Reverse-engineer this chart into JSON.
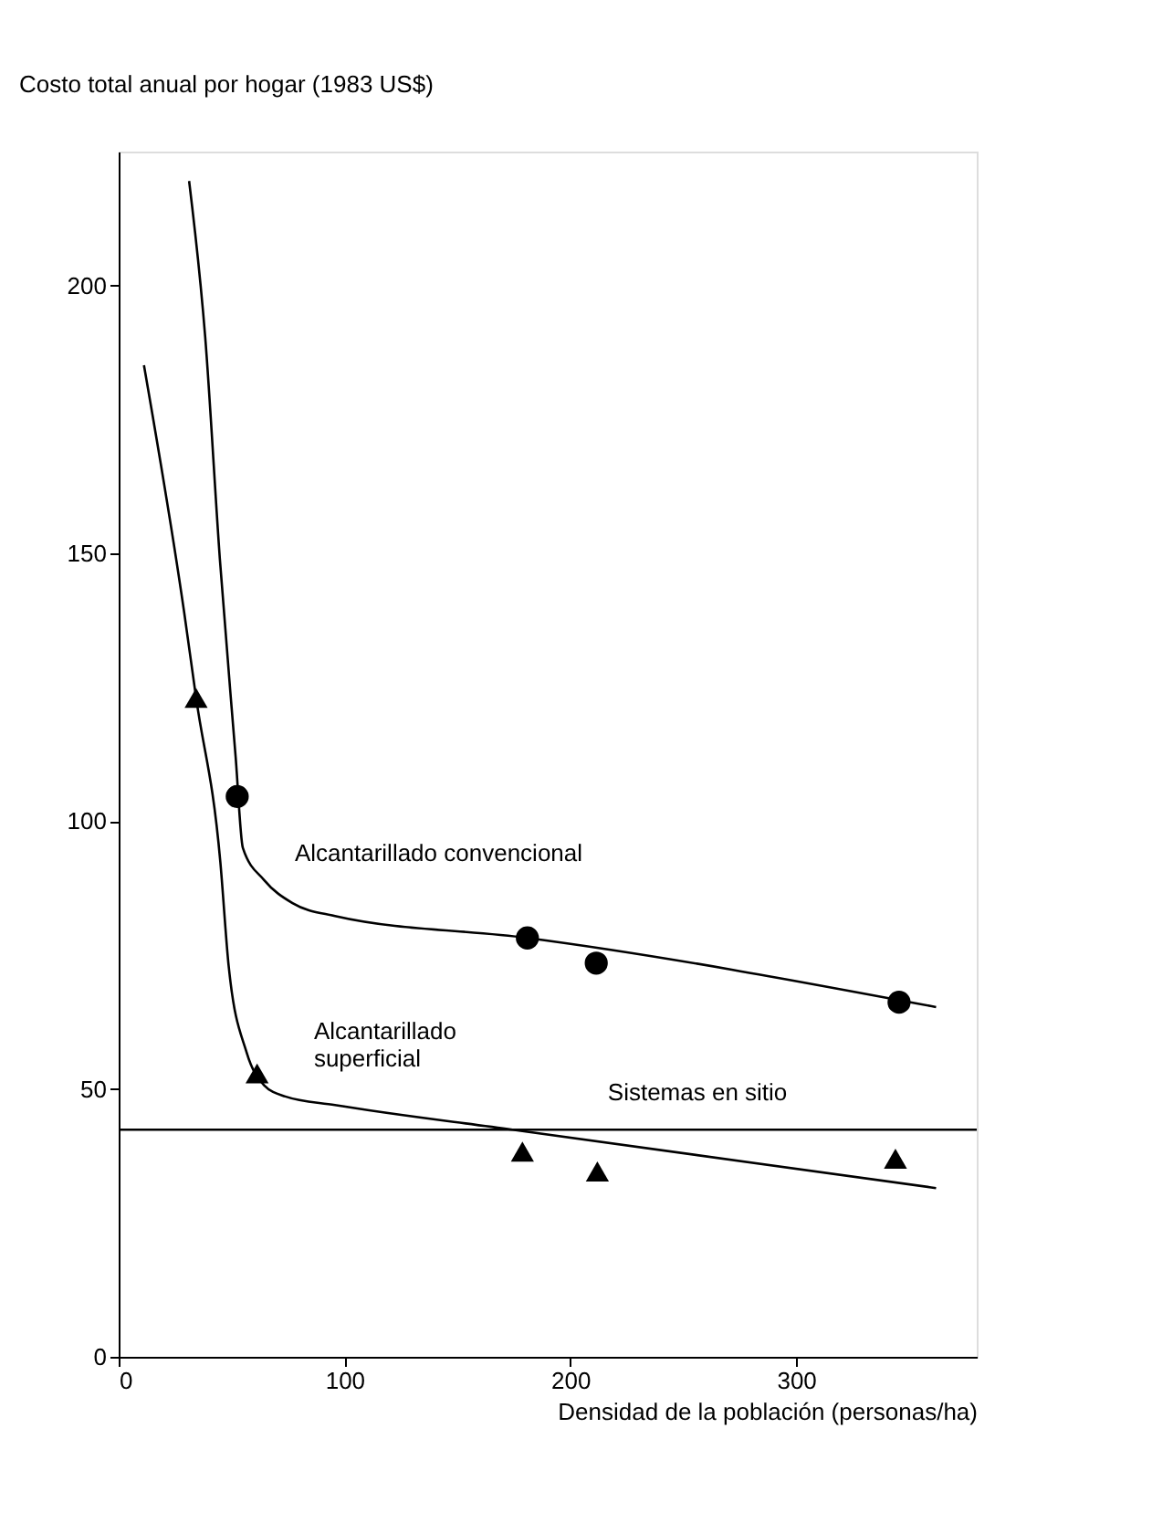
{
  "chart_data": {
    "type": "line",
    "ylabel": "Costo total anual por hogar (1983 US$)",
    "xlabel": "Densidad de la población (personas/ha)",
    "xlim": [
      0,
      380
    ],
    "ylim": [
      0,
      225
    ],
    "xticks": [
      0,
      100,
      200,
      300
    ],
    "yticks": [
      0,
      50,
      100,
      150,
      200
    ],
    "series": [
      {
        "type": "line",
        "color": "#000000",
        "marker": "none",
        "x": [
          31.2,
          38.3,
          44.8,
          51.8,
          55,
          64.4,
          77,
          95.8,
          181,
          362
        ],
        "values": [
          219.5,
          190.5,
          149,
          112,
          95,
          89,
          84.7,
          82.3,
          78.2,
          65.3
        ]
      },
      {
        "type": "line",
        "color": "#000000",
        "marker": "none",
        "x": [
          11.2,
          29,
          34.3,
          45,
          48.7,
          56.6,
          64.4,
          73.8,
          95.8,
          174.4,
          362
        ],
        "values": [
          185.1,
          139,
          123,
          92.5,
          73,
          56.9,
          50.7,
          48.6,
          47,
          42.4,
          31.5
        ]
      },
      {
        "type": "scatter",
        "color": "#000000",
        "marker": "circle",
        "x": [
          52.5,
          181,
          211.5,
          345.6
        ],
        "values": [
          104.6,
          78.2,
          73.5,
          66.2
        ]
      },
      {
        "type": "scatter",
        "color": "#000000",
        "marker": "triangle",
        "x": [
          34.3,
          61.3,
          178.8,
          212,
          344
        ],
        "values": [
          123,
          52.9,
          38.3,
          34.6,
          37
        ]
      }
    ],
    "ref_lines": [
      {
        "axis": "y",
        "value": 42.4,
        "label": "Sistemas en sitio",
        "color": "#000000"
      }
    ],
    "annotations": [
      {
        "text": "Alcantarillado convencional",
        "x": 78,
        "y": 84
      },
      {
        "text": "Alcantarillado\nsuperficial",
        "x": 80,
        "y": 48
      }
    ]
  }
}
